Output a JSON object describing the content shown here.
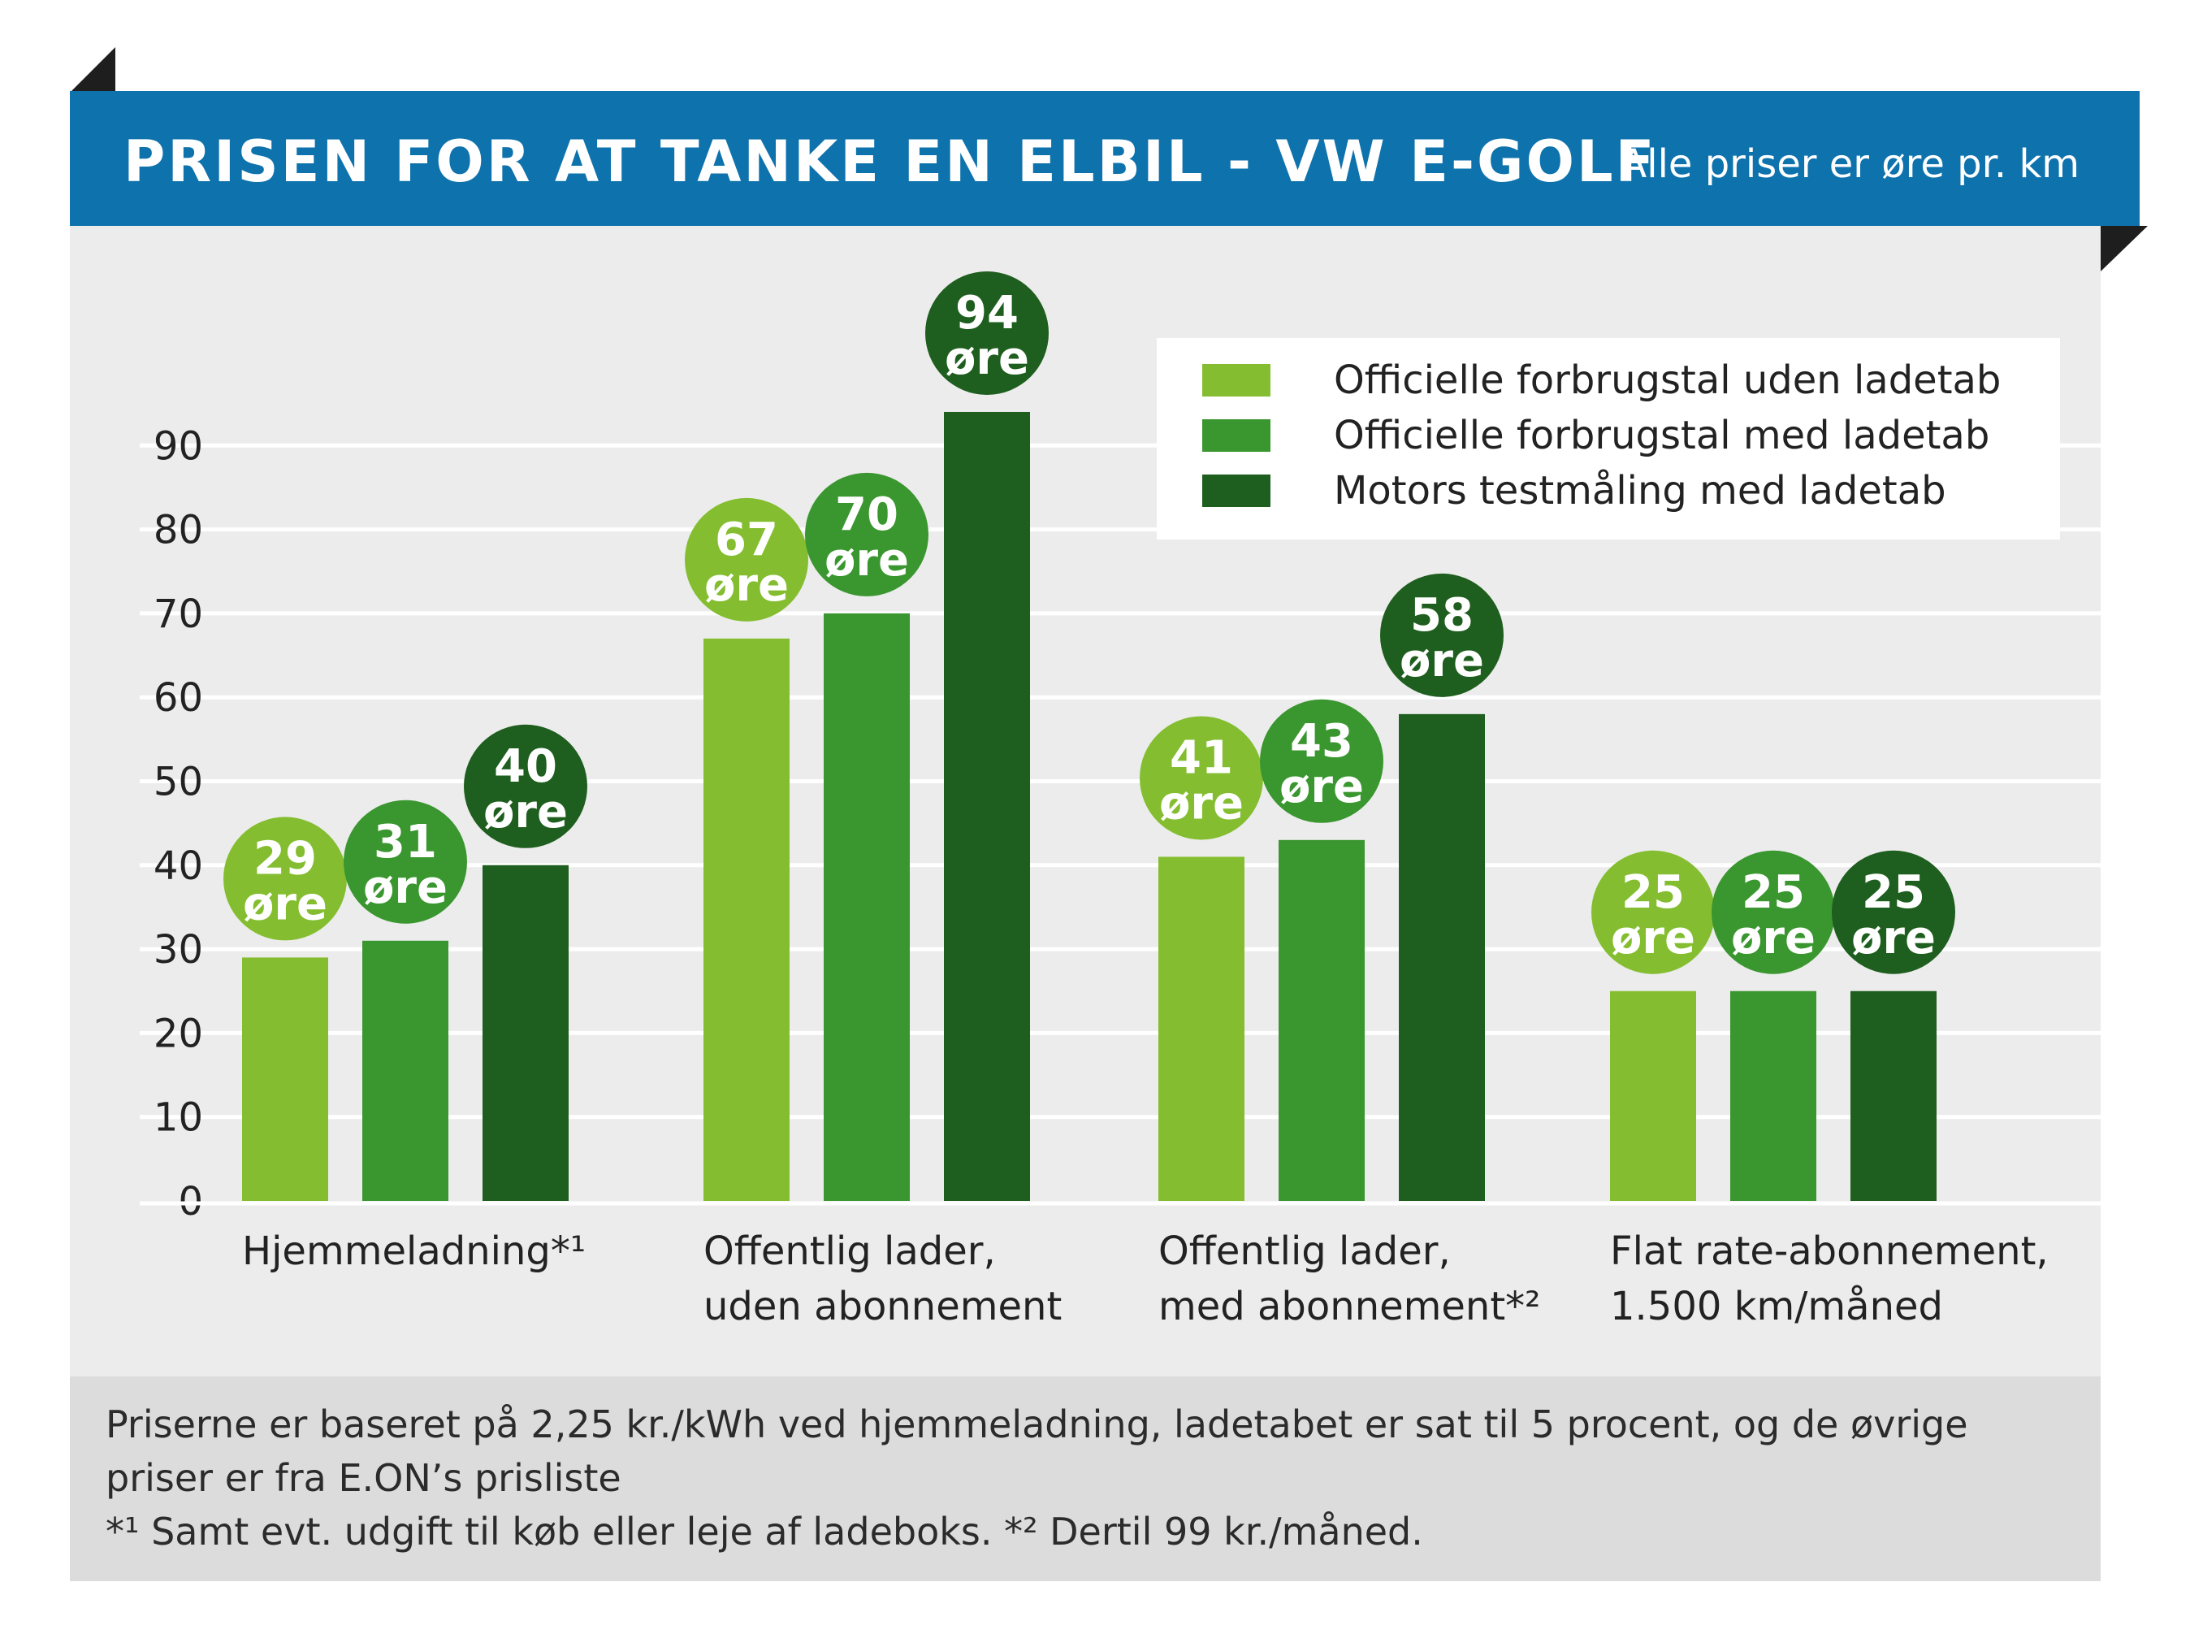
{
  "header": {
    "title": "PRISEN FOR AT TANKE EN ELBIL - VW E-GOLF",
    "subtitle": "Alle priser er øre pr. km"
  },
  "colors": {
    "header_bg": "#0e72ad",
    "series": [
      "#84be30",
      "#3a962f",
      "#1e5e1e"
    ]
  },
  "chart_data": {
    "type": "bar",
    "title": "PRISEN FOR AT TANKE EN ELBIL - VW E-GOLF",
    "ylabel": "øre pr. km",
    "ylim": [
      0,
      95
    ],
    "yticks": [
      0,
      10,
      20,
      30,
      40,
      50,
      60,
      70,
      80,
      90
    ],
    "grid": true,
    "legend_position": "top-right",
    "value_unit": "øre",
    "categories": [
      [
        "Hjemmeladning*¹"
      ],
      [
        "Offentlig lader,",
        "uden abonnement"
      ],
      [
        "Offentlig lader,",
        "med abonnement*²"
      ],
      [
        "Flat rate-abonnement,",
        "1.500 km/måned"
      ]
    ],
    "series": [
      {
        "name": "Officielle forbrugstal uden ladetab",
        "values": [
          29,
          67,
          41,
          25
        ]
      },
      {
        "name": "Officielle forbrugstal med ladetab",
        "values": [
          31,
          70,
          43,
          25
        ]
      },
      {
        "name": "Motors testmåling med ladetab",
        "values": [
          40,
          94,
          58,
          25
        ]
      }
    ]
  },
  "footer": {
    "line1": "Priserne er baseret på 2,25 kr./kWh ved hjemmeladning, ladetabet er sat til 5 procent, og de øvrige",
    "line2": "priser er fra E.ON’s prisliste",
    "line3": "*¹ Samt evt. udgift til køb eller leje af ladeboks. *² Dertil 99 kr./måned."
  }
}
